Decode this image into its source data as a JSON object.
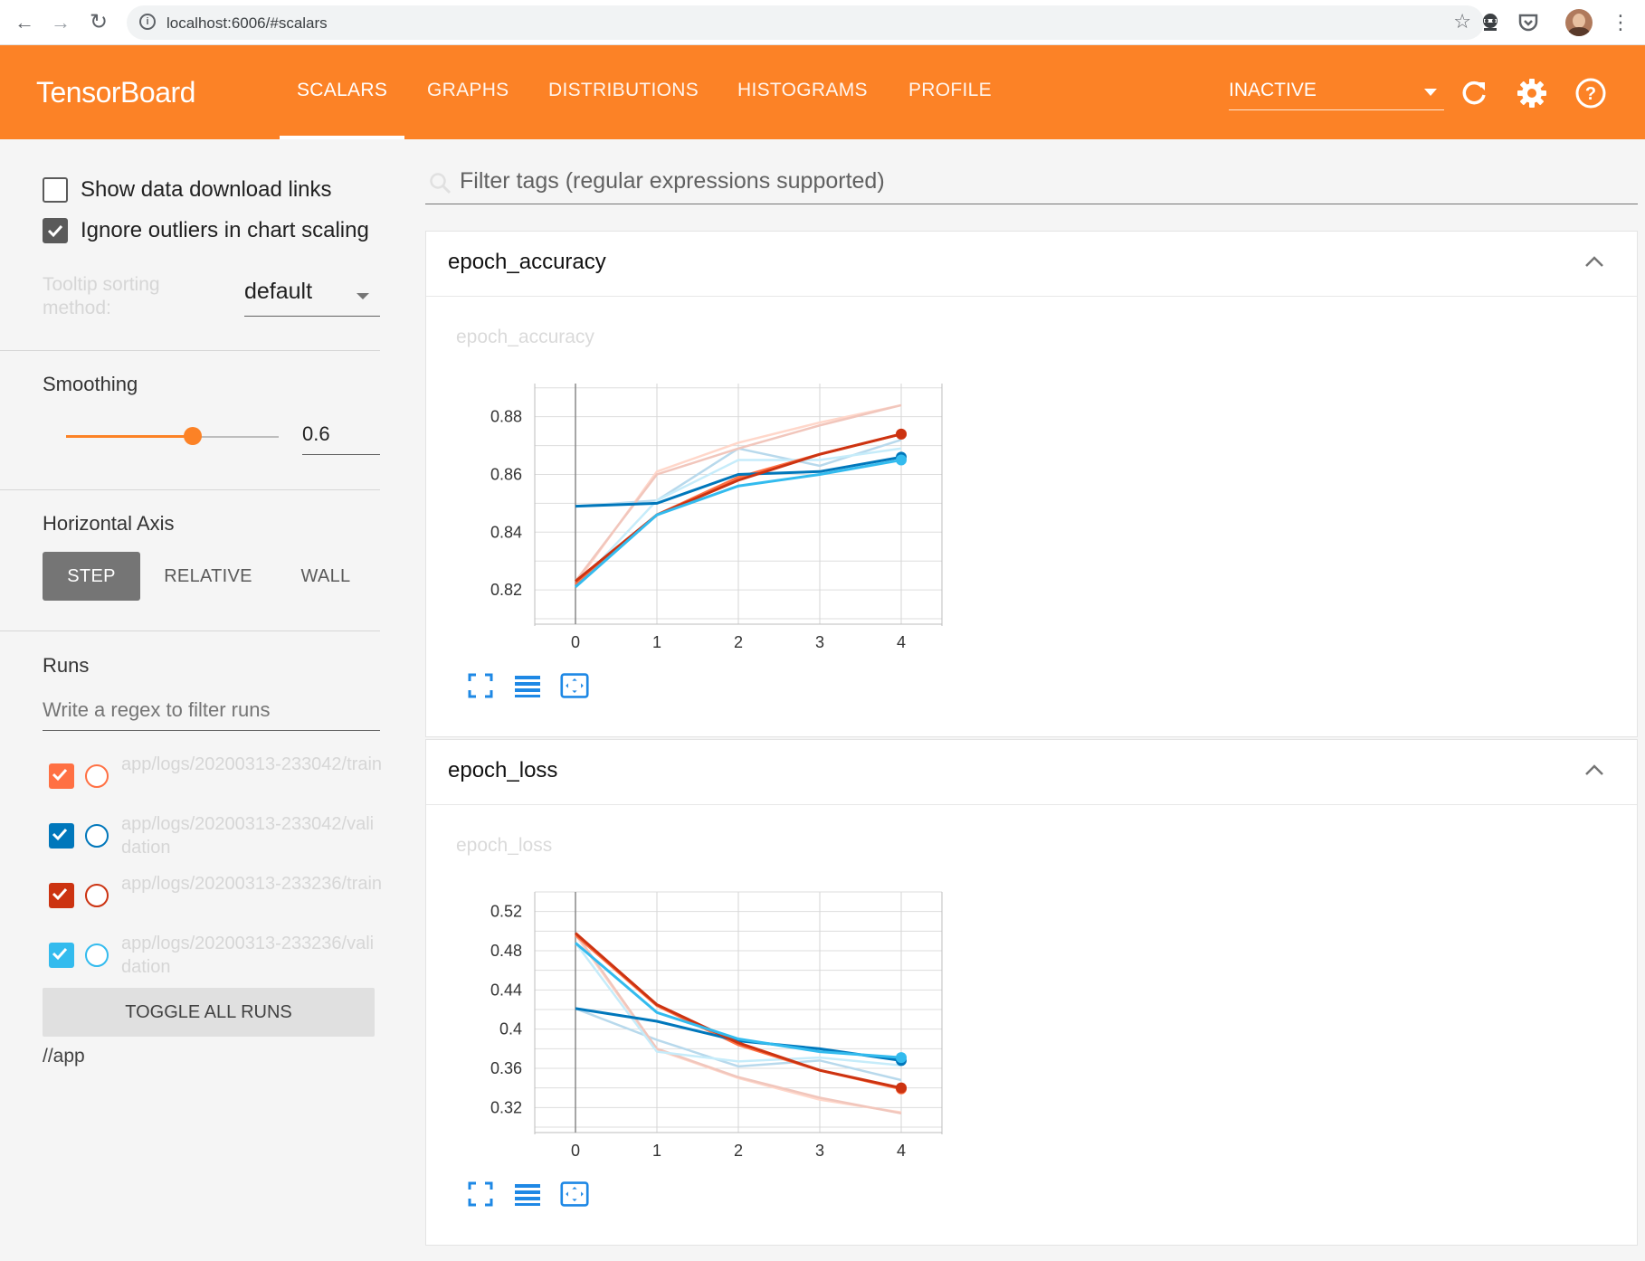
{
  "browser": {
    "url": "localhost:6006/#scalars"
  },
  "toolbar": {
    "brand": "TensorBoard",
    "tabs": [
      "SCALARS",
      "GRAPHS",
      "DISTRIBUTIONS",
      "HISTOGRAMS",
      "PROFILE"
    ],
    "active_tab": "SCALARS",
    "run_status": "INACTIVE"
  },
  "sidebar": {
    "show_download_links": {
      "label": "Show data download links",
      "checked": false
    },
    "ignore_outliers": {
      "label": "Ignore outliers in chart scaling",
      "checked": true
    },
    "tooltip_sorting": {
      "label": "Tooltip sorting method:",
      "value": "default"
    },
    "smoothing": {
      "title": "Smoothing",
      "value": "0.6",
      "fraction": 0.6
    },
    "horizontal_axis": {
      "title": "Horizontal Axis",
      "options": [
        "STEP",
        "RELATIVE",
        "WALL"
      ],
      "selected": "STEP"
    },
    "runs": {
      "title": "Runs",
      "filter_placeholder": "Write a regex to filter runs",
      "items": [
        {
          "name": "app/logs/20200313-233042/train",
          "color": "#ff7043",
          "checked": true
        },
        {
          "name": "app/logs/20200313-233042/validation",
          "color": "#0077bb",
          "checked": true
        },
        {
          "name": "app/logs/20200313-233236/train",
          "color": "#cc3311",
          "checked": true
        },
        {
          "name": "app/logs/20200313-233236/validation",
          "color": "#33bbee",
          "checked": true
        }
      ],
      "toggle_all_label": "TOGGLE ALL RUNS",
      "data_location": "//app"
    }
  },
  "main": {
    "tag_filter_placeholder": "Filter tags (regular expressions supported)",
    "cards": [
      {
        "title": "epoch_accuracy",
        "chart_title": "epoch_accuracy"
      },
      {
        "title": "epoch_loss",
        "chart_title": "epoch_loss"
      }
    ]
  },
  "chart_data": [
    {
      "type": "line",
      "title": "epoch_accuracy",
      "x": [
        0,
        1,
        2,
        3,
        4
      ],
      "xticks": [
        "0",
        "1",
        "2",
        "3",
        "4"
      ],
      "yticks": [
        "0.82",
        "0.84",
        "0.86",
        "0.88"
      ],
      "ylim": [
        0.81,
        0.8915
      ],
      "xlim": [
        -0.5,
        4.5
      ],
      "grid": true,
      "smoothing": 0.6,
      "series": [
        {
          "color": "#ff7043",
          "raw": [
            0.822,
            0.861,
            0.871,
            0.878,
            0.884
          ],
          "smoothed": [
            0.822,
            0.846,
            0.859,
            0.867,
            0.874
          ]
        },
        {
          "color": "#0077bb",
          "raw": [
            0.849,
            0.851,
            0.869,
            0.863,
            0.872
          ],
          "smoothed": [
            0.849,
            0.85,
            0.86,
            0.861,
            0.866
          ]
        },
        {
          "color": "#cc3311",
          "raw": [
            0.823,
            0.86,
            0.869,
            0.877,
            0.884
          ],
          "smoothed": [
            0.823,
            0.846,
            0.858,
            0.867,
            0.874
          ]
        },
        {
          "color": "#33bbee",
          "raw": [
            0.821,
            0.851,
            0.865,
            0.865,
            0.869
          ],
          "smoothed": [
            0.821,
            0.846,
            0.856,
            0.86,
            0.865
          ]
        }
      ]
    },
    {
      "type": "line",
      "title": "epoch_loss",
      "x": [
        0,
        1,
        2,
        3,
        4
      ],
      "xticks": [
        "0",
        "1",
        "2",
        "3",
        "4"
      ],
      "yticks": [
        "0.32",
        "0.36",
        "0.4",
        "0.44",
        "0.48",
        "0.52"
      ],
      "ylim": [
        0.3,
        0.54
      ],
      "xlim": [
        -0.5,
        4.5
      ],
      "grid": true,
      "smoothing": 0.6,
      "series": [
        {
          "color": "#ff7043",
          "raw": [
            0.496,
            0.379,
            0.35,
            0.328,
            0.315
          ],
          "smoothed": [
            0.496,
            0.424,
            0.384,
            0.358,
            0.339
          ]
        },
        {
          "color": "#0077bb",
          "raw": [
            0.421,
            0.389,
            0.362,
            0.368,
            0.348
          ],
          "smoothed": [
            0.421,
            0.408,
            0.388,
            0.38,
            0.368
          ]
        },
        {
          "color": "#cc3311",
          "raw": [
            0.498,
            0.38,
            0.351,
            0.33,
            0.314
          ],
          "smoothed": [
            0.498,
            0.425,
            0.386,
            0.358,
            0.34
          ]
        },
        {
          "color": "#33bbee",
          "raw": [
            0.488,
            0.377,
            0.367,
            0.371,
            0.363
          ],
          "smoothed": [
            0.488,
            0.417,
            0.39,
            0.377,
            0.371
          ]
        }
      ]
    }
  ]
}
